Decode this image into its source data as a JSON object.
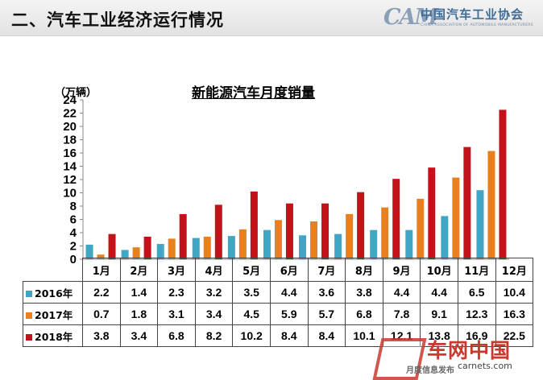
{
  "header": {
    "title": "二、汽车工业经济运行情况"
  },
  "logo": {
    "mark": "CAM",
    "cn": "中国汽车工业协会",
    "en": "CHINA ASSOCIATION OF AUTOMOBILE MANUFACTURERS"
  },
  "chart_data": {
    "type": "bar",
    "title": "新能源汽车月度销量",
    "ylabel": "（万辆）",
    "ylim": [
      0,
      24
    ],
    "yticks": [
      0,
      2,
      4,
      6,
      8,
      10,
      12,
      14,
      16,
      18,
      20,
      22,
      24
    ],
    "categories": [
      "1月",
      "2月",
      "3月",
      "4月",
      "5月",
      "6月",
      "7月",
      "8月",
      "9月",
      "10月",
      "11月",
      "12月"
    ],
    "series": [
      {
        "name": "2016年",
        "color": "#3fa6c4",
        "values": [
          2.2,
          1.4,
          2.3,
          3.2,
          3.5,
          4.4,
          3.6,
          3.8,
          4.4,
          4.4,
          6.5,
          10.4
        ]
      },
      {
        "name": "2017年",
        "color": "#e8801f",
        "values": [
          0.7,
          1.8,
          3.1,
          3.4,
          4.5,
          5.9,
          5.7,
          6.8,
          7.8,
          9.1,
          12.3,
          16.3
        ]
      },
      {
        "name": "2018年",
        "color": "#c4121a",
        "values": [
          3.8,
          3.4,
          6.8,
          8.2,
          10.2,
          8.4,
          8.4,
          10.1,
          12.1,
          13.8,
          16.9,
          22.5
        ]
      }
    ],
    "grid": false,
    "legend": "data-table"
  },
  "watermark": {
    "cn": "车网中国",
    "url": "carnets.com",
    "sub": "月度信息发布"
  }
}
